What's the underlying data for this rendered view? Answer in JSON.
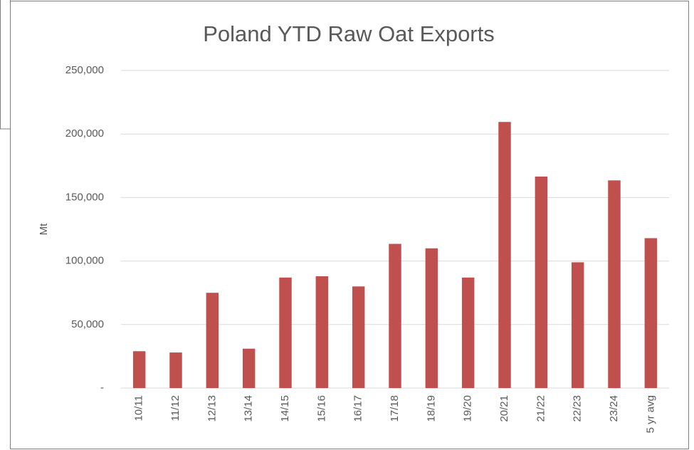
{
  "chart_data": {
    "type": "bar",
    "title": "Poland YTD Raw Oat Exports",
    "y_label": "Mt",
    "categories": [
      "10/11",
      "11/12",
      "12/13",
      "13/14",
      "14/15",
      "15/16",
      "16/17",
      "17/18",
      "18/19",
      "19/20",
      "20/21",
      "21/22",
      "22/23",
      "23/24",
      "5 yr avg"
    ],
    "values": [
      29000,
      28000,
      75000,
      31000,
      87000,
      88000,
      80000,
      113500,
      110000,
      87000,
      209500,
      166500,
      99000,
      163500,
      118000
    ],
    "color": "#c0504d",
    "ylim": [
      0,
      250000
    ],
    "yticks": [
      {
        "value": 0,
        "label": "-"
      },
      {
        "value": 50000,
        "label": "50,000"
      },
      {
        "value": 100000,
        "label": "100,000"
      },
      {
        "value": 150000,
        "label": "150,000"
      },
      {
        "value": 200000,
        "label": "200,000"
      },
      {
        "value": 250000,
        "label": "250,000"
      }
    ],
    "grid": true
  }
}
